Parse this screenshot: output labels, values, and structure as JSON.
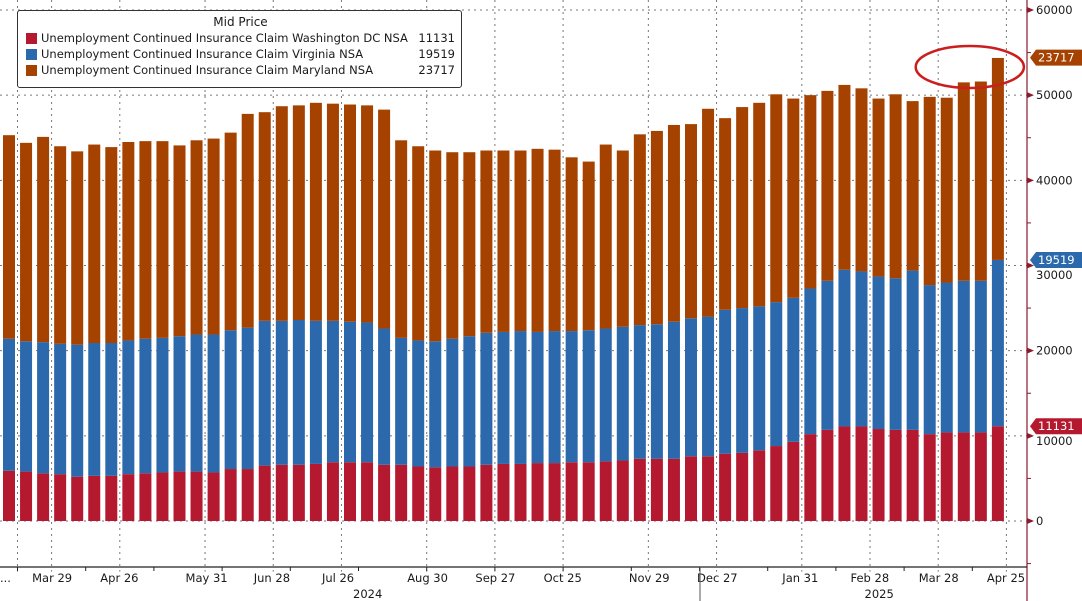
{
  "chart_data": {
    "type": "bar",
    "stacked": true,
    "title": "Mid Price",
    "xlabel": "",
    "ylabel": "",
    "ylim": [
      -5000,
      61000
    ],
    "y_ticks": [
      0,
      10000,
      20000,
      30000,
      40000,
      50000,
      60000
    ],
    "y_tick_labels": [
      "0",
      "10000",
      "20000",
      "30000",
      "40000",
      "50000",
      "60000"
    ],
    "x_tick_labels": [
      "...",
      "Mar 29",
      "Apr 26",
      "May 31",
      "Jun 28",
      "Jul 26",
      "Aug 30",
      "Sep 27",
      "Oct 25",
      "Nov 29",
      "Dec 27",
      "Jan 31",
      "Feb 28",
      "Mar 28",
      "Apr 25"
    ],
    "x_tick_bar_index": [
      0,
      2,
      6,
      11,
      15,
      19,
      24,
      28,
      32,
      37,
      41,
      46,
      50,
      54,
      58
    ],
    "year_labels": [
      {
        "label": "2024",
        "bar_index": 20
      },
      {
        "label": "2025",
        "bar_index": 50
      }
    ],
    "legend_position": "top-left",
    "grid": true,
    "categories_count": 59,
    "series": [
      {
        "name": "Unemployment Continued Insurance Claim Washington DC NSA",
        "color": "#b5192f",
        "last_value": 11131,
        "values": [
          5900,
          5800,
          5600,
          5500,
          5200,
          5300,
          5300,
          5500,
          5600,
          5700,
          5800,
          5800,
          5700,
          6100,
          6100,
          6500,
          6600,
          6600,
          6700,
          6900,
          6900,
          6900,
          6600,
          6600,
          6400,
          6300,
          6400,
          6400,
          6600,
          6700,
          6700,
          6800,
          6800,
          6900,
          6900,
          7000,
          7100,
          7300,
          7300,
          7300,
          7600,
          7600,
          7900,
          8000,
          8300,
          8800,
          9300,
          10200,
          10700,
          11100,
          11100,
          10800,
          10700,
          10700,
          10200,
          10400,
          10400,
          10400,
          11131
        ]
      },
      {
        "name": "Unemployment Continued Insurance Claim Virginia NSA",
        "color": "#2c69ac",
        "last_value": 19519,
        "values": [
          15500,
          15300,
          15400,
          15300,
          15500,
          15600,
          15600,
          15700,
          15800,
          15800,
          15900,
          16100,
          16200,
          16300,
          16600,
          17000,
          16900,
          17000,
          16800,
          16600,
          16500,
          16400,
          16000,
          14900,
          14800,
          14800,
          15000,
          15300,
          15500,
          15500,
          15600,
          15400,
          15500,
          15400,
          15500,
          15600,
          15700,
          15700,
          15800,
          16100,
          16200,
          16400,
          16900,
          17000,
          16900,
          16900,
          16900,
          17100,
          17500,
          18400,
          18200,
          17900,
          17800,
          18700,
          17500,
          17600,
          17800,
          17800,
          19519
        ]
      },
      {
        "name": "Unemployment Continued Insurance Claim Maryland NSA",
        "color": "#a64200",
        "last_value": 23717,
        "values": [
          23900,
          23300,
          24100,
          23200,
          22700,
          23300,
          23000,
          23300,
          23200,
          23100,
          22400,
          22800,
          23000,
          23200,
          25100,
          24500,
          25200,
          25200,
          25600,
          25500,
          25500,
          25500,
          25700,
          23200,
          22800,
          22400,
          21900,
          21600,
          21400,
          21300,
          21200,
          21500,
          21300,
          20400,
          19800,
          21600,
          20700,
          22400,
          22700,
          23100,
          22800,
          24400,
          22500,
          23600,
          23900,
          24400,
          23400,
          22700,
          22300,
          21700,
          21500,
          20900,
          21600,
          19900,
          22100,
          21700,
          23300,
          23400,
          23717
        ]
      }
    ],
    "value_tags": [
      {
        "series": "Maryland",
        "label": "23717",
        "color": "#a64200",
        "y_value": 54400
      },
      {
        "series": "Virginia",
        "label": "19519",
        "color": "#2c69ac",
        "y_value": 30650
      },
      {
        "series": "Washington DC",
        "label": "11131",
        "color": "#b5192f",
        "y_value": 11131
      }
    ],
    "annotation": {
      "type": "ellipse",
      "color": "#cc1e1e",
      "around_bar_indices": [
        54,
        58
      ]
    }
  },
  "legend": {
    "title": "Mid Price",
    "items": [
      {
        "label": "Unemployment Continued Insurance Claim Washington DC NSA",
        "value": "11131",
        "color": "#b5192f"
      },
      {
        "label": "Unemployment Continued Insurance Claim Virginia NSA",
        "value": "19519",
        "color": "#2c69ac"
      },
      {
        "label": "Unemployment Continued Insurance Claim Maryland NSA",
        "value": "23717",
        "color": "#a64200"
      }
    ]
  }
}
